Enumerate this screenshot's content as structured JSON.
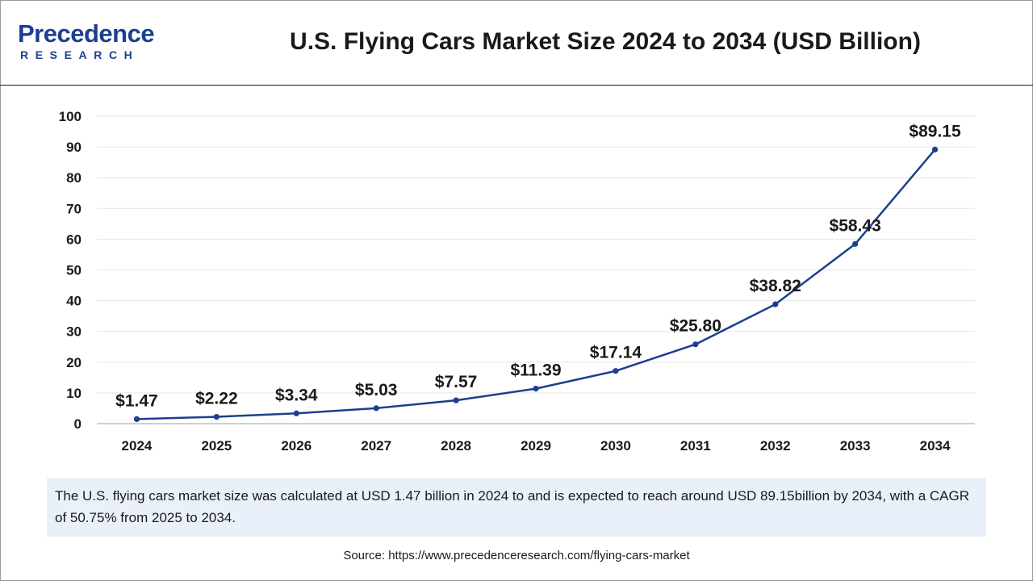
{
  "logo": {
    "word": "Precedence",
    "sub": "RESEARCH"
  },
  "header": {
    "title": "U.S. Flying Cars Market Size 2024 to 2034 (USD Billion)"
  },
  "chart_data": {
    "type": "line",
    "title": "U.S. Flying Cars Market Size 2024 to 2034 (USD Billion)",
    "xlabel": "",
    "ylabel": "",
    "categories": [
      "2024",
      "2025",
      "2026",
      "2027",
      "2028",
      "2029",
      "2030",
      "2031",
      "2032",
      "2033",
      "2034"
    ],
    "series": [
      {
        "name": "Market Size (USD Billion)",
        "values": [
          1.47,
          2.22,
          3.34,
          5.03,
          7.57,
          11.39,
          17.14,
          25.8,
          38.82,
          58.43,
          89.15
        ],
        "labels": [
          "$1.47",
          "$2.22",
          "$3.34",
          "$5.03",
          "$7.57",
          "$11.39",
          "$17.14",
          "$25.80",
          "$38.82",
          "$58.43",
          "$89.15"
        ]
      }
    ],
    "ylim": [
      0,
      100
    ],
    "yticks": [
      0,
      10,
      20,
      30,
      40,
      50,
      60,
      70,
      80,
      90,
      100
    ],
    "grid": true,
    "colors": {
      "line": "#1d3f8f",
      "grid": "#e6e6e6",
      "axis": "#bfbfbf",
      "text": "#1a1a1a"
    }
  },
  "caption": {
    "text": "The U.S. flying cars market size was calculated at USD 1.47 billion in 2024 to and is expected to reach around USD 89.15billion by 2034, with a CAGR of 50.75% from 2025 to 2034."
  },
  "source": {
    "text": "Source: https://www.precedenceresearch.com/flying-cars-market"
  }
}
